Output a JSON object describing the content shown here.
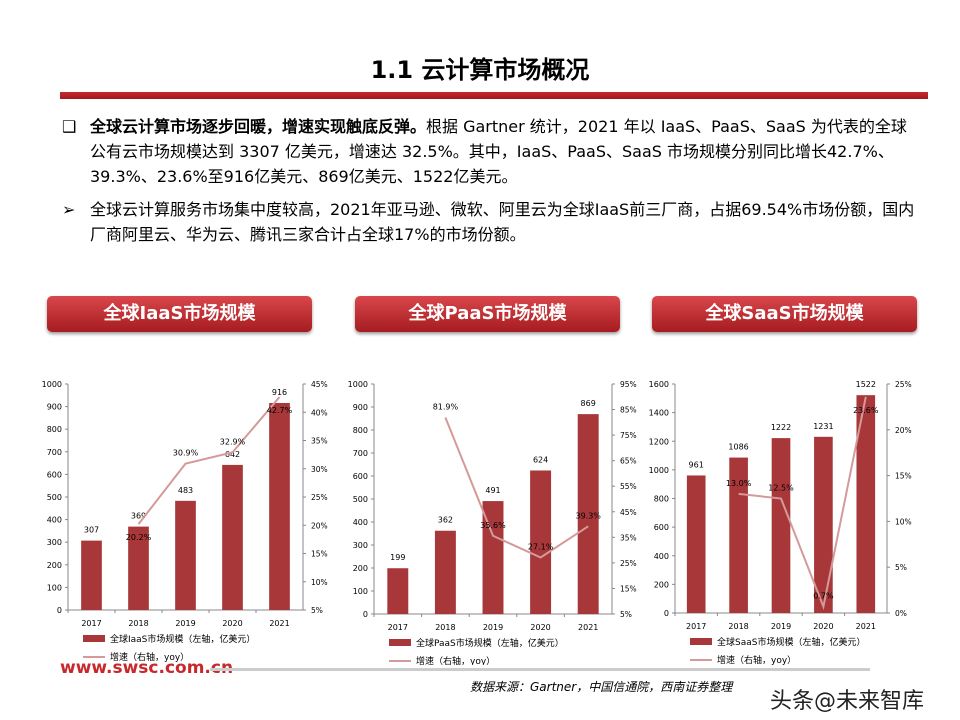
{
  "title": "1.1 云计算市场概况",
  "bullets": [
    {
      "marker": "❑",
      "bold": "全球云计算市场逐步回暖，增速实现触底反弹。",
      "text": "根据 Gartner 统计，2021 年以 IaaS、PaaS、SaaS 为代表的全球公有云市场规模达到 3307 亿美元，增速达 32.5%。其中，IaaS、PaaS、SaaS 市场规模分别同比增长42.7%、39.3%、23.6%至916亿美元、869亿美元、1522亿美元。"
    },
    {
      "marker": "➢",
      "bold": "",
      "text": "全球云计算服务市场集中度较高，2021年亚马逊、微软、阿里云为全球IaaS前三厂商，占据69.54%市场份额，国内厂商阿里云、华为云、腾讯三家合计占全球17%的市场份额。"
    }
  ],
  "headers": [
    "全球IaaS市场规模",
    "全球PaaS市场规模",
    "全球SaaS市场规模"
  ],
  "chart_data": [
    {
      "type": "bar+line",
      "categories": [
        "2017",
        "2018",
        "2019",
        "2020",
        "2021"
      ],
      "series": [
        {
          "name": "全球IaaS市场规模（左轴，亿美元）",
          "type": "bar",
          "axis": "left",
          "values": [
            307,
            369,
            483,
            642,
            916
          ]
        },
        {
          "name": "增速（右轴，yoy）",
          "type": "line",
          "axis": "right",
          "values": [
            null,
            20.2,
            30.9,
            32.9,
            42.7
          ],
          "labels": [
            "",
            "20.2%",
            "30.9%",
            "32.9%",
            "42.7%"
          ]
        }
      ],
      "ylim_left": [
        0,
        1000
      ],
      "yticks_left": [
        0,
        100,
        200,
        300,
        400,
        500,
        600,
        700,
        800,
        900,
        1000
      ],
      "ylim_right": [
        5,
        45
      ],
      "yticks_right": [
        "5%",
        "10%",
        "15%",
        "20%",
        "25%",
        "30%",
        "35%",
        "40%",
        "45%"
      ]
    },
    {
      "type": "bar+line",
      "categories": [
        "2017",
        "2018",
        "2019",
        "2020",
        "2021"
      ],
      "series": [
        {
          "name": "全球PaaS市场规模（左轴，亿美元）",
          "type": "bar",
          "axis": "left",
          "values": [
            199,
            362,
            491,
            624,
            869
          ]
        },
        {
          "name": "增速（右轴，yoy）",
          "type": "line",
          "axis": "right",
          "values": [
            null,
            81.9,
            35.6,
            27.1,
            39.3
          ],
          "labels": [
            "",
            "81.9%",
            "35.6%",
            "27.1%",
            "39.3%"
          ]
        }
      ],
      "ylim_left": [
        0,
        1000
      ],
      "yticks_left": [
        0,
        100,
        200,
        300,
        400,
        500,
        600,
        700,
        800,
        900,
        1000
      ],
      "ylim_right": [
        5,
        95
      ],
      "yticks_right": [
        "5%",
        "15%",
        "25%",
        "35%",
        "45%",
        "55%",
        "65%",
        "75%",
        "85%",
        "95%"
      ]
    },
    {
      "type": "bar+line",
      "categories": [
        "2017",
        "2018",
        "2019",
        "2020",
        "2021"
      ],
      "series": [
        {
          "name": "全球SaaS市场规模（左轴，亿美元）",
          "type": "bar",
          "axis": "left",
          "values": [
            961,
            1086,
            1222,
            1231,
            1522
          ]
        },
        {
          "name": "增速（右轴，yoy）",
          "type": "line",
          "axis": "right",
          "values": [
            null,
            13.0,
            12.5,
            0.7,
            23.6
          ],
          "labels": [
            "",
            "13.0%",
            "12.5%",
            "0.7%",
            "23.6%"
          ]
        }
      ],
      "ylim_left": [
        0,
        1600
      ],
      "yticks_left": [
        0,
        200,
        400,
        600,
        800,
        1000,
        1200,
        1400,
        1600
      ],
      "ylim_right": [
        0,
        25
      ],
      "yticks_right": [
        "0%",
        "5%",
        "10%",
        "15%",
        "20%",
        "25%"
      ]
    }
  ],
  "colors": {
    "bar": "#a8373a",
    "line": "#d49a9a",
    "accent": "#c8282c"
  },
  "footer": {
    "site": "www.swsc.com.cn",
    "source": "数据来源：Gartner，中国信通院，西南证券整理",
    "watermark": "头条@未来智库"
  }
}
